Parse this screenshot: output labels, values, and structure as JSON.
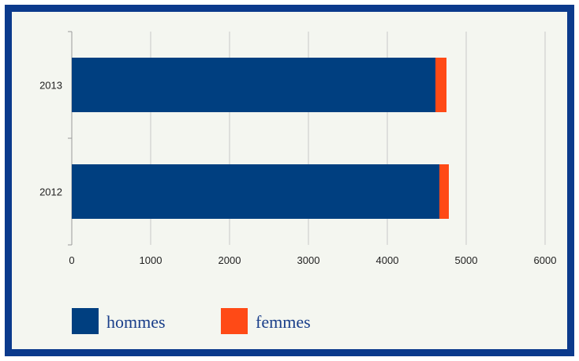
{
  "chart_data": {
    "type": "bar",
    "orientation": "horizontal",
    "stacked": true,
    "categories": [
      "2013",
      "2012"
    ],
    "series": [
      {
        "name": "hommes",
        "values": [
          4610,
          4660
        ],
        "color": "#003f80"
      },
      {
        "name": "femmes",
        "values": [
          140,
          120
        ],
        "color": "#ff4a16"
      }
    ],
    "xlim": [
      0,
      6000
    ],
    "xticks": [
      "0",
      "1000",
      "2000",
      "3000",
      "4000",
      "5000",
      "6000"
    ],
    "grid": true,
    "legend_position": "bottom-left",
    "title": "",
    "xlabel": "",
    "ylabel": ""
  },
  "colors": {
    "frame_border": "#0b3a8c",
    "background": "#f4f6f0",
    "gridline": "#c8c8c8",
    "legend_text": "#1a3f8a"
  }
}
